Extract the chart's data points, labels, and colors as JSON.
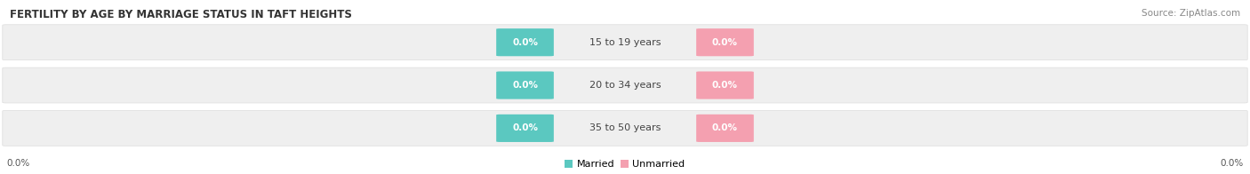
{
  "title": "FERTILITY BY AGE BY MARRIAGE STATUS IN TAFT HEIGHTS",
  "source": "Source: ZipAtlas.com",
  "categories": [
    "15 to 19 years",
    "20 to 34 years",
    "35 to 50 years"
  ],
  "married_values": [
    0.0,
    0.0,
    0.0
  ],
  "unmarried_values": [
    0.0,
    0.0,
    0.0
  ],
  "married_color": "#5BC8C0",
  "unmarried_color": "#F4A0B0",
  "bar_bg_color": "#EFEFEF",
  "bar_bg_color2": "#E8E8E8",
  "bar_edge_color": "#DDDDDD",
  "title_fontsize": 8.5,
  "source_fontsize": 7.5,
  "label_fontsize": 7.5,
  "cat_fontsize": 8.0,
  "axis_label_left": "0.0%",
  "axis_label_right": "0.0%",
  "legend_married": "Married",
  "legend_unmarried": "Unmarried",
  "fig_width": 14.06,
  "fig_height": 1.96,
  "background_color": "#FFFFFF"
}
